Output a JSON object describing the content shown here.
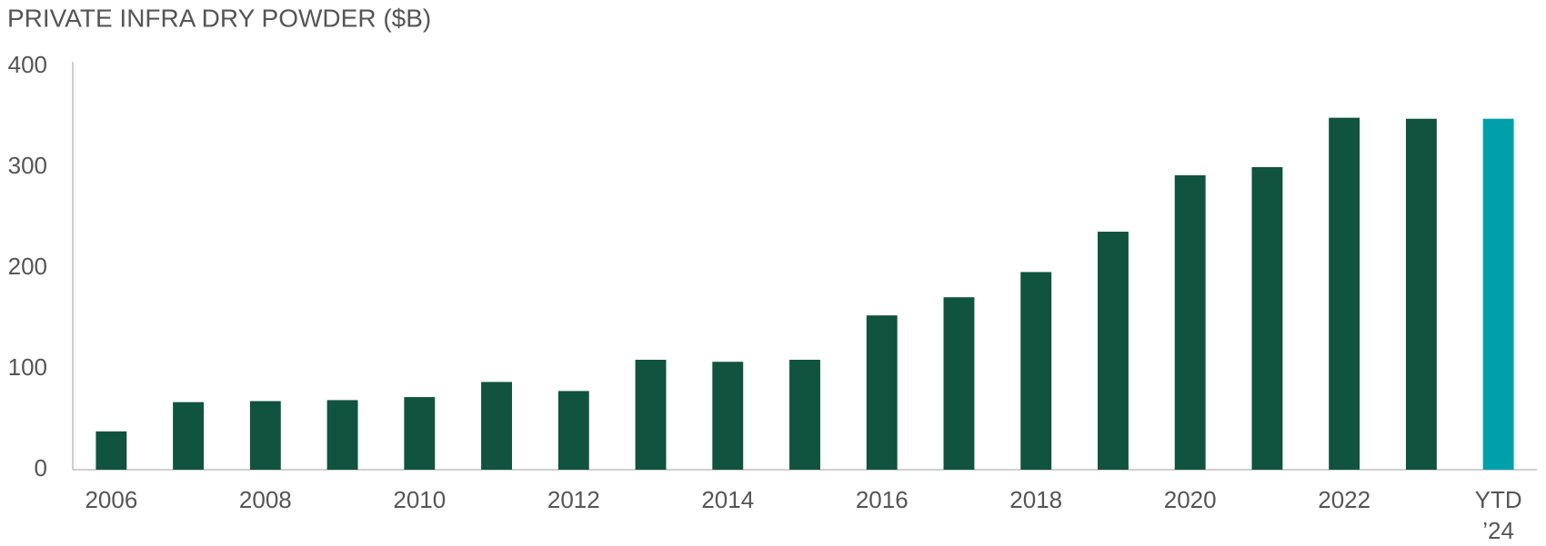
{
  "chart_data": {
    "type": "bar",
    "title": "PRIVATE INFRA DRY POWDER ($B)",
    "categories": [
      "2006",
      null,
      "2008",
      null,
      "2010",
      null,
      "2012",
      null,
      "2014",
      null,
      "2016",
      null,
      "2018",
      null,
      "2020",
      null,
      "2022",
      null,
      "YTD ’24"
    ],
    "values": [
      38,
      67,
      68,
      69,
      72,
      87,
      78,
      109,
      107,
      109,
      153,
      171,
      196,
      236,
      292,
      300,
      349,
      348,
      348
    ],
    "colors": [
      "#10533f",
      "#10533f",
      "#10533f",
      "#10533f",
      "#10533f",
      "#10533f",
      "#10533f",
      "#10533f",
      "#10533f",
      "#10533f",
      "#10533f",
      "#10533f",
      "#10533f",
      "#10533f",
      "#10533f",
      "#10533f",
      "#10533f",
      "#10533f",
      "#00a0aa"
    ],
    "ylim": [
      0,
      400
    ],
    "yticks": [
      0,
      100,
      200,
      300,
      400
    ],
    "grid": false
  }
}
